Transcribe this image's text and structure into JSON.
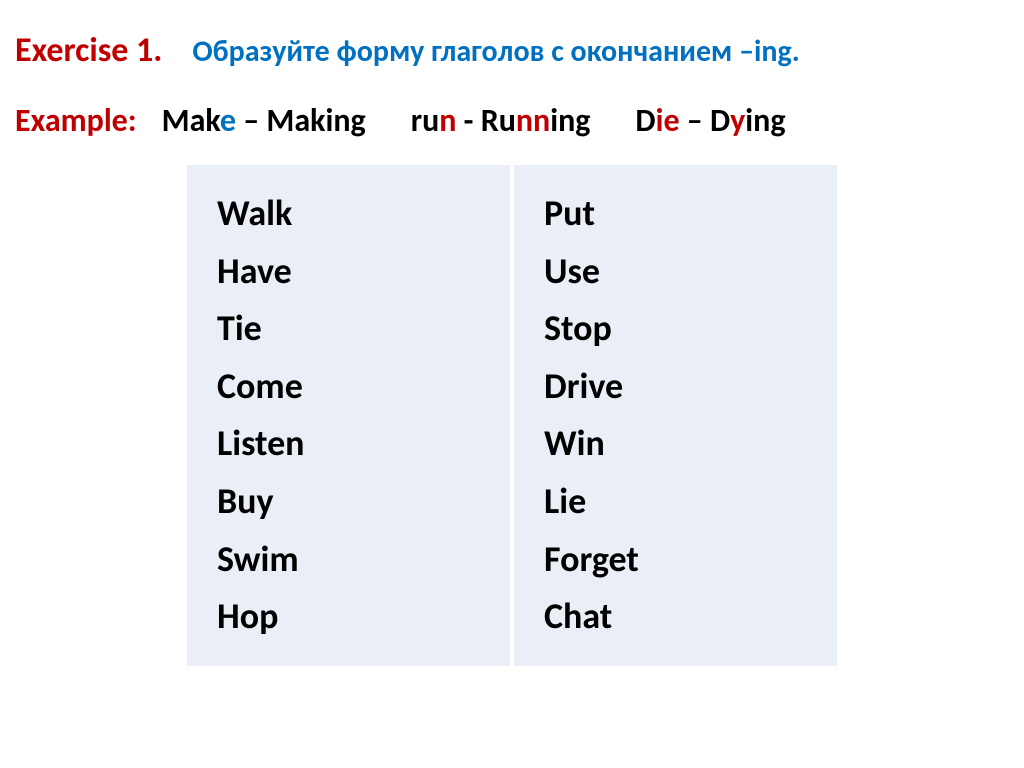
{
  "header": {
    "exercise_label": "Exercise 1.",
    "instruction": "Образуйте форму глаголов с окончанием –ing."
  },
  "example": {
    "label": "Example:",
    "items": [
      {
        "pre": "Mak",
        "hl": "e",
        "sep": " – Making",
        "hl_color": "#0070c0"
      },
      {
        "pre": "ru",
        "hl": "n",
        "sep": " - Ru",
        "hl2": "nn",
        "post": "ing",
        "hl_color": "#c00000"
      },
      {
        "pre": "D",
        "hl": "ie",
        "sep": " – D",
        "hl2": "y",
        "post": "ing",
        "hl_color": "#c00000"
      }
    ]
  },
  "table": {
    "col1": [
      "Walk",
      "Have",
      "Tie",
      "Come",
      "Listen",
      "Buy",
      "Swim",
      "Hop"
    ],
    "col2": [
      "Put",
      "Use",
      "Stop",
      "Drive",
      "Win",
      "Lie",
      "Forget",
      "Chat"
    ],
    "bg_color": "#eaeff7",
    "divider_color": "#ffffff",
    "word_fontsize": 36,
    "word_weight": "bold"
  },
  "colors": {
    "red": "#c00000",
    "blue": "#0070c0",
    "text": "#000000",
    "background": "#ffffff"
  },
  "typography": {
    "title_fontsize": 34,
    "instr_fontsize": 30,
    "example_fontsize": 32,
    "font_family": "Calibri"
  }
}
